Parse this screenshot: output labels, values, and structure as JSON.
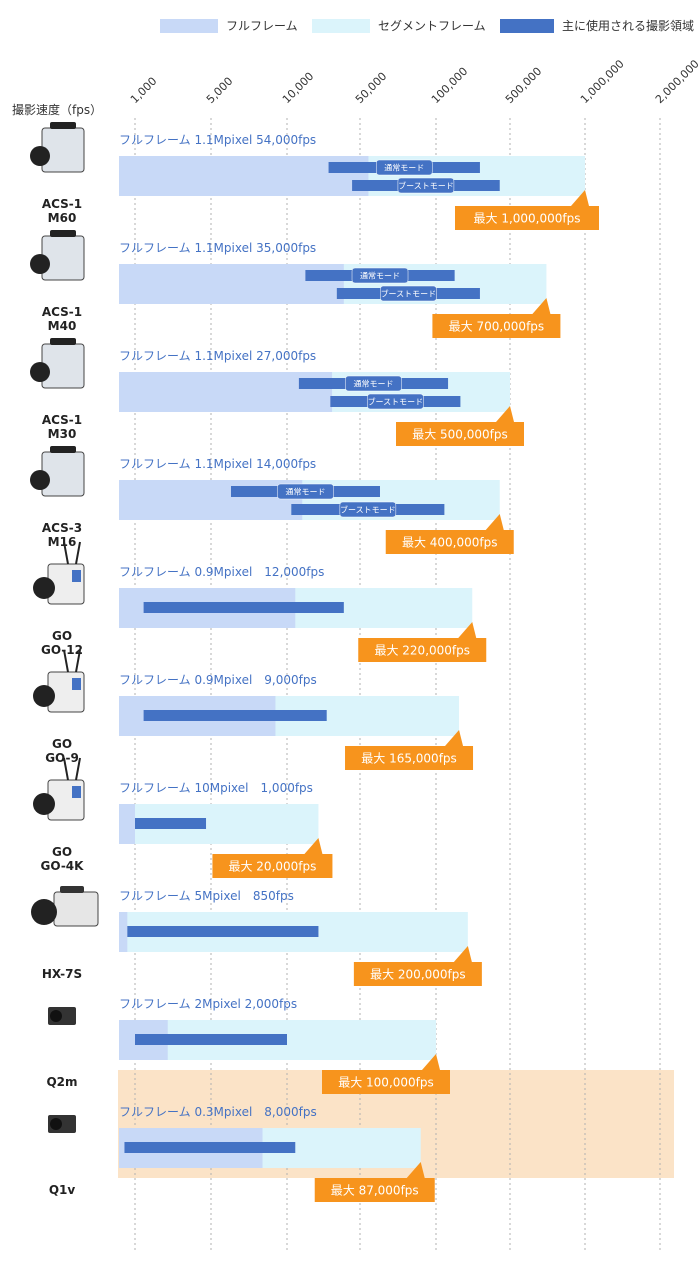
{
  "colors": {
    "full_frame": "#c8d9f7",
    "segment_frame": "#dbf4fb",
    "main_range": "#4472c4",
    "max_callout": "#f7941d",
    "highlight_bg": "#fbe3c7",
    "title_text": "#4472c4",
    "highlight_text": "#f7941d",
    "grid": "#b0b0b0"
  },
  "chart_data": {
    "type": "bar",
    "orientation": "horizontal",
    "scale": "log",
    "legend": [
      {
        "key": "full",
        "label": "フルフレーム"
      },
      {
        "key": "segment",
        "label": "セグメントフレーム"
      },
      {
        "key": "main",
        "label": "主に使用される撮影領域"
      }
    ],
    "legend_placement": "top",
    "axis_title": "撮影速度（fps）",
    "ticks": [
      {
        "value": 1000,
        "label": "1,000"
      },
      {
        "value": 5000,
        "label": "5,000"
      },
      {
        "value": 10000,
        "label": "10,000"
      },
      {
        "value": 50000,
        "label": "50,000"
      },
      {
        "value": 100000,
        "label": "100,000"
      },
      {
        "value": 500000,
        "label": "500,000"
      },
      {
        "value": 1000000,
        "label": "1,000,000"
      },
      {
        "value": 2000000,
        "label": "2,000,000"
      }
    ],
    "grid": true,
    "rows": [
      {
        "name": "ACS-1 M60",
        "name_lines": [
          "ACS-1",
          "M60"
        ],
        "icon": "acs-camera-icon",
        "title": "フルフレーム 1.1Mpixel 54,000fps",
        "full_fps": 54000,
        "max_fps": 1000000,
        "max_label": "最大 1,000,000fps",
        "highlight": false,
        "modes": [
          {
            "label": "通常モード",
            "min": 25000,
            "max": 260000
          },
          {
            "label": "ブーストモード",
            "min": 42000,
            "max": 400000
          }
        ]
      },
      {
        "name": "ACS-1 M40",
        "name_lines": [
          "ACS-1",
          "M40"
        ],
        "icon": "acs-camera-icon",
        "title": "フルフレーム 1.1Mpixel 35,000fps",
        "full_fps": 35000,
        "max_fps": 700000,
        "max_label": "最大 700,000fps",
        "highlight": false,
        "modes": [
          {
            "label": "通常モード",
            "min": 15000,
            "max": 150000
          },
          {
            "label": "ブーストモード",
            "min": 30000,
            "max": 260000
          }
        ]
      },
      {
        "name": "ACS-1 M30",
        "name_lines": [
          "ACS-1",
          "M30"
        ],
        "icon": "acs-camera-icon",
        "title": "フルフレーム 1.1Mpixel 27,000fps",
        "full_fps": 27000,
        "max_fps": 500000,
        "max_label": "最大 500,000fps",
        "highlight": false,
        "modes": [
          {
            "label": "通常モード",
            "min": 13000,
            "max": 130000
          },
          {
            "label": "ブーストモード",
            "min": 26000,
            "max": 170000
          }
        ]
      },
      {
        "name": "ACS-3 M16",
        "name_lines": [
          "ACS-3",
          "M16"
        ],
        "icon": "acs-camera-icon",
        "title": "フルフレーム 1.1Mpixel 14,000fps",
        "full_fps": 14000,
        "max_fps": 400000,
        "max_label": "最大 400,000fps",
        "highlight": false,
        "modes": [
          {
            "label": "通常モード",
            "min": 6000,
            "max": 60000
          },
          {
            "label": "ブーストモード",
            "min": 11000,
            "max": 120000
          }
        ]
      },
      {
        "name": "GO GO-12",
        "name_lines": [
          "GO",
          "GO-12"
        ],
        "icon": "go-camera-icon",
        "title": "フルフレーム 0.9Mpixel　12,000fps",
        "full_fps": 12000,
        "max_fps": 220000,
        "max_label": "最大 220,000fps",
        "highlight": false,
        "modes": [
          {
            "label": "",
            "min": 1200,
            "max": 35000
          }
        ]
      },
      {
        "name": "GO GO-9",
        "name_lines": [
          "GO",
          "GO-9"
        ],
        "icon": "go-camera-icon",
        "title": "フルフレーム 0.9Mpixel　9,000fps",
        "full_fps": 9000,
        "max_fps": 165000,
        "max_label": "最大 165,000fps",
        "highlight": false,
        "modes": [
          {
            "label": "",
            "min": 1200,
            "max": 24000
          }
        ]
      },
      {
        "name": "GO GO-4K",
        "name_lines": [
          "GO",
          "GO-4K"
        ],
        "icon": "go-camera-icon",
        "title": "フルフレーム 10Mpixel　1,000fps",
        "full_fps": 1000,
        "max_fps": 20000,
        "max_label": "最大 20,000fps",
        "highlight": false,
        "modes": [
          {
            "label": "",
            "min": 1000,
            "max": 4500
          }
        ]
      },
      {
        "name": "HX-7S",
        "name_lines": [
          "HX-7S"
        ],
        "icon": "hx-camera-icon",
        "title": "フルフレーム 5Mpixel　850fps",
        "full_fps": 850,
        "max_fps": 200000,
        "max_label": "最大 200,000fps",
        "highlight": false,
        "modes": [
          {
            "label": "",
            "min": 850,
            "max": 20000
          }
        ]
      },
      {
        "name": "Q2m",
        "name_lines": [
          "Q2m"
        ],
        "icon": "q-camera-icon",
        "title": "フルフレーム 2Mpixel 2,000fps",
        "full_fps": 2000,
        "max_fps": 100000,
        "max_label": "最大 100,000fps",
        "highlight": false,
        "modes": [
          {
            "label": "",
            "min": 1000,
            "max": 10000
          }
        ]
      },
      {
        "name": "Q1v",
        "name_lines": [
          "Q1v"
        ],
        "icon": "q-camera-icon",
        "title": "フルフレーム 0.3Mpixel　8,000fps",
        "full_fps": 8000,
        "max_fps": 87000,
        "max_label": "最大 87,000fps",
        "highlight": true,
        "modes": [
          {
            "label": "",
            "min": 800,
            "max": 12000
          }
        ]
      }
    ]
  }
}
